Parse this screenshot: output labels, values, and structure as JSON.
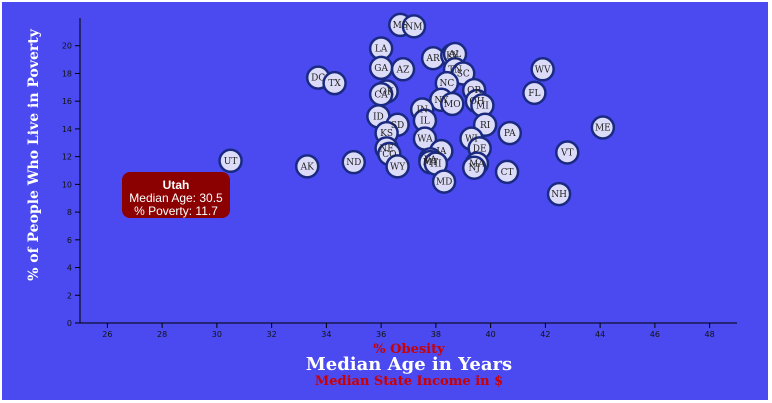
{
  "chart_data": {
    "type": "scatter",
    "xlabel_options": [
      {
        "label": "% Obesity",
        "active": false,
        "color": "#cc0000"
      },
      {
        "label": "Median Age in Years",
        "active": true,
        "color": "#ffffff"
      },
      {
        "label": "Median State Income in $",
        "active": false,
        "color": "#cc0000"
      }
    ],
    "ylabel": "% of People Who Live in Poverty",
    "xlim": [
      25,
      49
    ],
    "ylim": [
      0,
      22
    ],
    "x_ticks": [
      26,
      28,
      30,
      32,
      34,
      36,
      38,
      40,
      42,
      44,
      46,
      48
    ],
    "y_ticks": [
      0,
      2,
      4,
      6,
      8,
      10,
      12,
      14,
      16,
      18,
      20
    ],
    "points": [
      {
        "label": "MS",
        "x": 36.7,
        "y": 21.5
      },
      {
        "label": "NM",
        "x": 37.2,
        "y": 21.4
      },
      {
        "label": "LA",
        "x": 36.0,
        "y": 19.8
      },
      {
        "label": "AR",
        "x": 37.9,
        "y": 19.1
      },
      {
        "label": "KY",
        "x": 38.6,
        "y": 19.3
      },
      {
        "label": "AL",
        "x": 38.7,
        "y": 19.4
      },
      {
        "label": "GA",
        "x": 36.0,
        "y": 18.4
      },
      {
        "label": "AZ",
        "x": 36.8,
        "y": 18.3
      },
      {
        "label": "TN",
        "x": 38.7,
        "y": 18.3
      },
      {
        "label": "SC",
        "x": 39.0,
        "y": 18.0
      },
      {
        "label": "WV",
        "x": 41.9,
        "y": 18.3
      },
      {
        "label": "DC",
        "x": 33.7,
        "y": 17.7
      },
      {
        "label": "TX",
        "x": 34.3,
        "y": 17.3
      },
      {
        "label": "NC",
        "x": 38.4,
        "y": 17.3
      },
      {
        "label": "OK",
        "x": 36.2,
        "y": 16.7
      },
      {
        "label": "CA",
        "x": 36.0,
        "y": 16.5
      },
      {
        "label": "OR",
        "x": 39.4,
        "y": 16.8
      },
      {
        "label": "FL",
        "x": 41.6,
        "y": 16.6
      },
      {
        "label": "NY",
        "x": 38.2,
        "y": 16.1
      },
      {
        "label": "MO",
        "x": 38.6,
        "y": 15.8
      },
      {
        "label": "OH",
        "x": 39.5,
        "y": 16.0
      },
      {
        "label": "MI",
        "x": 39.7,
        "y": 15.7
      },
      {
        "label": "IN",
        "x": 37.5,
        "y": 15.4
      },
      {
        "label": "IL",
        "x": 37.6,
        "y": 14.6
      },
      {
        "label": "ID",
        "x": 35.9,
        "y": 14.9
      },
      {
        "label": "SD",
        "x": 36.6,
        "y": 14.3
      },
      {
        "label": "RI",
        "x": 39.8,
        "y": 14.3
      },
      {
        "label": "ME",
        "x": 44.1,
        "y": 14.1
      },
      {
        "label": "KS",
        "x": 36.2,
        "y": 13.7
      },
      {
        "label": "PA",
        "x": 40.7,
        "y": 13.7
      },
      {
        "label": "WA",
        "x": 37.6,
        "y": 13.3
      },
      {
        "label": "WI",
        "x": 39.3,
        "y": 13.3
      },
      {
        "label": "DE",
        "x": 39.6,
        "y": 12.6
      },
      {
        "label": "NE",
        "x": 36.2,
        "y": 12.6
      },
      {
        "label": "CO",
        "x": 36.3,
        "y": 12.2
      },
      {
        "label": "IA",
        "x": 38.2,
        "y": 12.4
      },
      {
        "label": "VT",
        "x": 42.8,
        "y": 12.3
      },
      {
        "label": "VA",
        "x": 37.8,
        "y": 11.8
      },
      {
        "label": "MT",
        "x": 37.8,
        "y": 11.6
      },
      {
        "label": "HI",
        "x": 38.0,
        "y": 11.5
      },
      {
        "label": "MA",
        "x": 39.5,
        "y": 11.5
      },
      {
        "label": "NJ",
        "x": 39.4,
        "y": 11.2
      },
      {
        "label": "UT",
        "x": 30.5,
        "y": 11.7
      },
      {
        "label": "ND",
        "x": 35.0,
        "y": 11.6
      },
      {
        "label": "AK",
        "x": 33.3,
        "y": 11.3
      },
      {
        "label": "WY",
        "x": 36.6,
        "y": 11.3
      },
      {
        "label": "CT",
        "x": 40.6,
        "y": 10.9
      },
      {
        "label": "MD",
        "x": 38.3,
        "y": 10.2
      },
      {
        "label": "NH",
        "x": 42.5,
        "y": 9.3
      }
    ]
  },
  "tooltip": {
    "state": "Utah",
    "age_line": "Median Age: 30.5",
    "poverty_line": "% Poverty: 11.7"
  },
  "colors": {
    "background": "#4a4af0",
    "marker_fill": "#dcdcf8",
    "marker_stroke": "#1a2a80",
    "tooltip_bg": "#8b0000"
  }
}
